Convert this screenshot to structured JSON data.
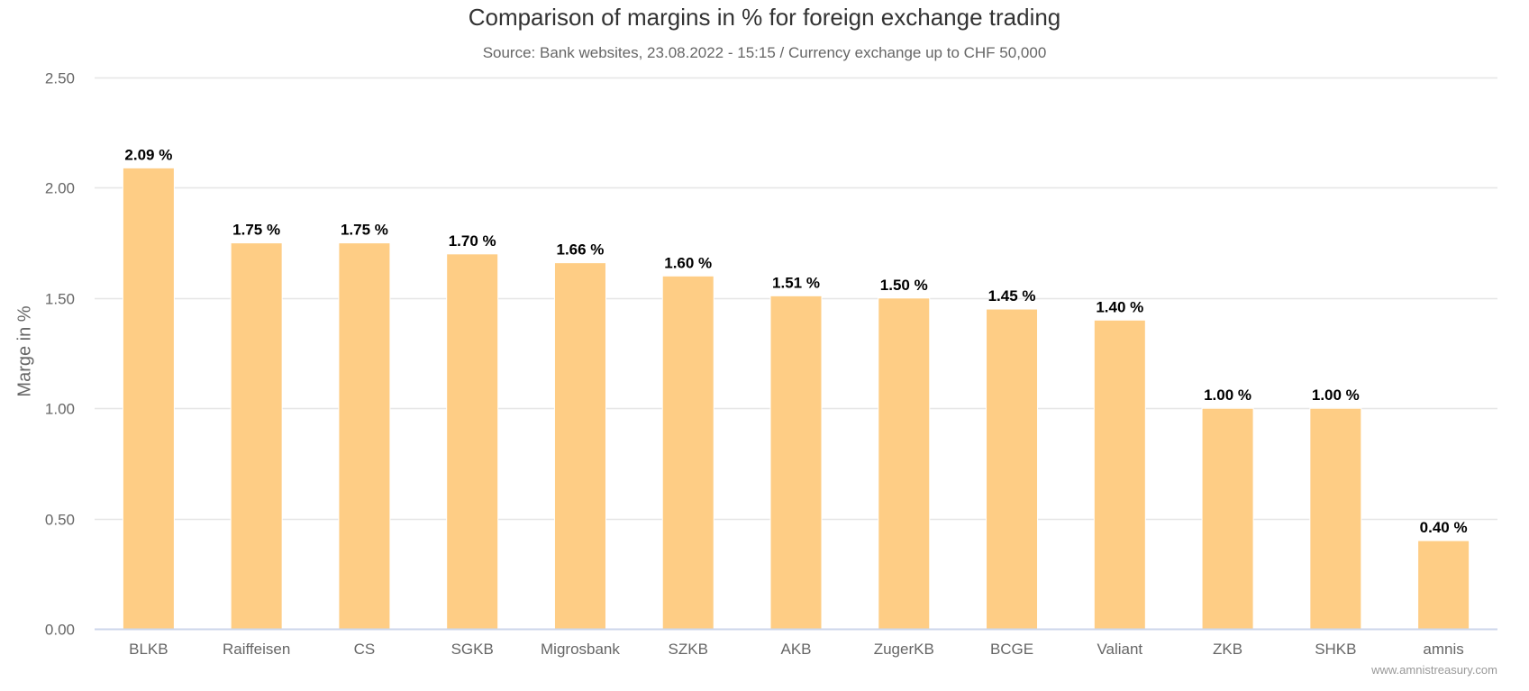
{
  "header": {
    "title": "Comparison of margins in % for foreign exchange trading",
    "subtitle": "Source: Bank websites, 23.08.2022 - 15:15 / Currency exchange up to CHF 50,000"
  },
  "credits": "www.amnistreasury.com",
  "colors": {
    "bar": "#fecd85",
    "bar_border": "#ffffff",
    "grid": "#e6e6e6",
    "axis_line": "#ccd6eb",
    "tick_label": "#666666",
    "data_label": "#000000"
  },
  "chart_data": {
    "type": "bar",
    "title": "Comparison of margins in % for foreign exchange trading",
    "subtitle": "Source: Bank websites, 23.08.2022 - 15:15 / Currency exchange up to CHF 50,000",
    "xlabel": "",
    "ylabel": "Marge in %",
    "ylim": [
      0,
      2.5
    ],
    "yticks": [
      "0.00",
      "0.50",
      "1.00",
      "1.50",
      "2.00",
      "2.50"
    ],
    "grid": true,
    "legend": "none",
    "categories": [
      "BLKB",
      "Raiffeisen",
      "CS",
      "SGKB",
      "Migrosbank",
      "SZKB",
      "AKB",
      "ZugerKB",
      "BCGE",
      "Valiant",
      "ZKB",
      "SHKB",
      "amnis"
    ],
    "values": [
      2.09,
      1.75,
      1.75,
      1.7,
      1.66,
      1.6,
      1.51,
      1.5,
      1.45,
      1.4,
      1.0,
      1.0,
      0.4
    ],
    "data_labels": [
      "2.09 %",
      "1.75 %",
      "1.75 %",
      "1.70 %",
      "1.66 %",
      "1.60 %",
      "1.51 %",
      "1.50 %",
      "1.45 %",
      "1.40 %",
      "1.00 %",
      "1.00 %",
      "0.40 %"
    ],
    "credits": "www.amnistreasury.com"
  }
}
